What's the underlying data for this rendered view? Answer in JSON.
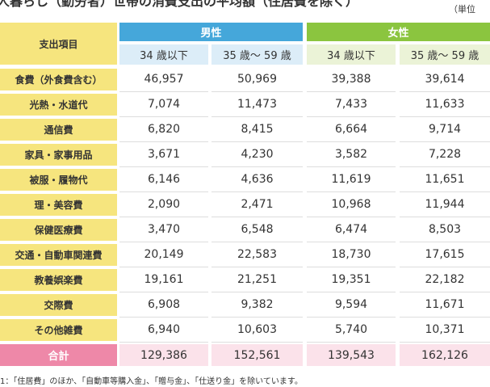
{
  "title": "人暮らし（勤労者）世帯の消費支出の平均額（住居費を除く）",
  "unit": "（単位",
  "header": {
    "item": "支出項目",
    "groups": [
      "男性",
      "女性"
    ],
    "sub": [
      "34 歳以下",
      "35 歳～ 59 歳",
      "34 歳以下",
      "35 歳～ 59 歳"
    ]
  },
  "table": {
    "rows": [
      [
        "食費（外食費含む）",
        "46,957",
        "50,969",
        "39,388",
        "39,614"
      ],
      [
        "光熱・水道代",
        "7,074",
        "11,473",
        "7,433",
        "11,633"
      ],
      [
        "通信費",
        "6,820",
        "8,415",
        "6,664",
        "9,714"
      ],
      [
        "家具・家事用品",
        "3,671",
        "4,230",
        "3,582",
        "7,228"
      ],
      [
        "被服・履物代",
        "6,146",
        "4,636",
        "11,619",
        "11,651"
      ],
      [
        "理・美容費",
        "2,090",
        "2,471",
        "10,968",
        "11,944"
      ],
      [
        "保健医療費",
        "3,470",
        "6,548",
        "6,474",
        "8,503"
      ],
      [
        "交通・自動車関連費",
        "20,149",
        "22,583",
        "18,730",
        "17,615"
      ],
      [
        "教養娯楽費",
        "19,161",
        "21,251",
        "19,351",
        "22,182"
      ],
      [
        "交際費",
        "6,908",
        "9,382",
        "9,594",
        "11,671"
      ],
      [
        "その他雑費",
        "6,940",
        "10,603",
        "5,740",
        "10,371"
      ]
    ],
    "total": [
      "合計",
      "129,386",
      "152,561",
      "139,543",
      "162,126"
    ]
  },
  "footnote": "1：「住居費」のほか、「自動車等購入金」、「贈与金」、「仕送り金」を除いています。"
}
